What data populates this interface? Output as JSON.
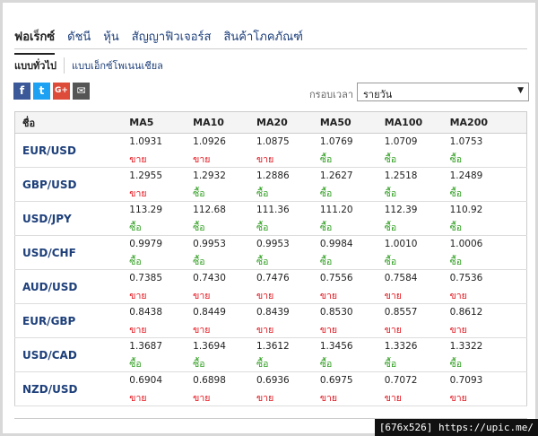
{
  "tabs": [
    "ฟอเร็กซ์",
    "ดัชนี",
    "หุ้น",
    "สัญญาฟิวเจอร์ส",
    "สินค้าโภคภัณฑ์"
  ],
  "subtabs": [
    "แบบทั่วไป",
    "แบบเอ็กซ์โพเนนเชียล"
  ],
  "timeframe": {
    "label": "กรอบเวลา",
    "selected": "รายวัน"
  },
  "signal_colors": {
    "ซื้อ": "#2e9e1f",
    "ขาย": "#e3121b"
  },
  "table": {
    "header": [
      "ชื่อ",
      "MA5",
      "MA10",
      "MA20",
      "MA50",
      "MA100",
      "MA200"
    ],
    "rows": [
      {
        "name": "EUR/USD",
        "cells": [
          {
            "value": "1.0931",
            "signal": "ขาย"
          },
          {
            "value": "1.0926",
            "signal": "ขาย"
          },
          {
            "value": "1.0875",
            "signal": "ขาย"
          },
          {
            "value": "1.0769",
            "signal": "ซื้อ"
          },
          {
            "value": "1.0709",
            "signal": "ซื้อ"
          },
          {
            "value": "1.0753",
            "signal": "ซื้อ"
          }
        ]
      },
      {
        "name": "GBP/USD",
        "cells": [
          {
            "value": "1.2955",
            "signal": "ขาย"
          },
          {
            "value": "1.2932",
            "signal": "ซื้อ"
          },
          {
            "value": "1.2886",
            "signal": "ซื้อ"
          },
          {
            "value": "1.2627",
            "signal": "ซื้อ"
          },
          {
            "value": "1.2518",
            "signal": "ซื้อ"
          },
          {
            "value": "1.2489",
            "signal": "ซื้อ"
          }
        ]
      },
      {
        "name": "USD/JPY",
        "cells": [
          {
            "value": "113.29",
            "signal": "ซื้อ"
          },
          {
            "value": "112.68",
            "signal": "ซื้อ"
          },
          {
            "value": "111.36",
            "signal": "ซื้อ"
          },
          {
            "value": "111.20",
            "signal": "ซื้อ"
          },
          {
            "value": "112.39",
            "signal": "ซื้อ"
          },
          {
            "value": "110.92",
            "signal": "ซื้อ"
          }
        ]
      },
      {
        "name": "USD/CHF",
        "cells": [
          {
            "value": "0.9979",
            "signal": "ซื้อ"
          },
          {
            "value": "0.9953",
            "signal": "ซื้อ"
          },
          {
            "value": "0.9953",
            "signal": "ซื้อ"
          },
          {
            "value": "0.9984",
            "signal": "ซื้อ"
          },
          {
            "value": "1.0010",
            "signal": "ซื้อ"
          },
          {
            "value": "1.0006",
            "signal": "ซื้อ"
          }
        ]
      },
      {
        "name": "AUD/USD",
        "cells": [
          {
            "value": "0.7385",
            "signal": "ขาย"
          },
          {
            "value": "0.7430",
            "signal": "ขาย"
          },
          {
            "value": "0.7476",
            "signal": "ขาย"
          },
          {
            "value": "0.7556",
            "signal": "ขาย"
          },
          {
            "value": "0.7584",
            "signal": "ขาย"
          },
          {
            "value": "0.7536",
            "signal": "ขาย"
          }
        ]
      },
      {
        "name": "EUR/GBP",
        "cells": [
          {
            "value": "0.8438",
            "signal": "ขาย"
          },
          {
            "value": "0.8449",
            "signal": "ขาย"
          },
          {
            "value": "0.8439",
            "signal": "ขาย"
          },
          {
            "value": "0.8530",
            "signal": "ขาย"
          },
          {
            "value": "0.8557",
            "signal": "ขาย"
          },
          {
            "value": "0.8612",
            "signal": "ขาย"
          }
        ]
      },
      {
        "name": "USD/CAD",
        "cells": [
          {
            "value": "1.3687",
            "signal": "ซื้อ"
          },
          {
            "value": "1.3694",
            "signal": "ซื้อ"
          },
          {
            "value": "1.3612",
            "signal": "ซื้อ"
          },
          {
            "value": "1.3456",
            "signal": "ซื้อ"
          },
          {
            "value": "1.3326",
            "signal": "ซื้อ"
          },
          {
            "value": "1.3322",
            "signal": "ซื้อ"
          }
        ]
      },
      {
        "name": "NZD/USD",
        "cells": [
          {
            "value": "0.6904",
            "signal": "ขาย"
          },
          {
            "value": "0.6898",
            "signal": "ขาย"
          },
          {
            "value": "0.6936",
            "signal": "ขาย"
          },
          {
            "value": "0.6975",
            "signal": "ขาย"
          },
          {
            "value": "0.7072",
            "signal": "ขาย"
          },
          {
            "value": "0.7093",
            "signal": "ขาย"
          }
        ]
      }
    ]
  },
  "watermark": "[676x526] https://upic.me/"
}
